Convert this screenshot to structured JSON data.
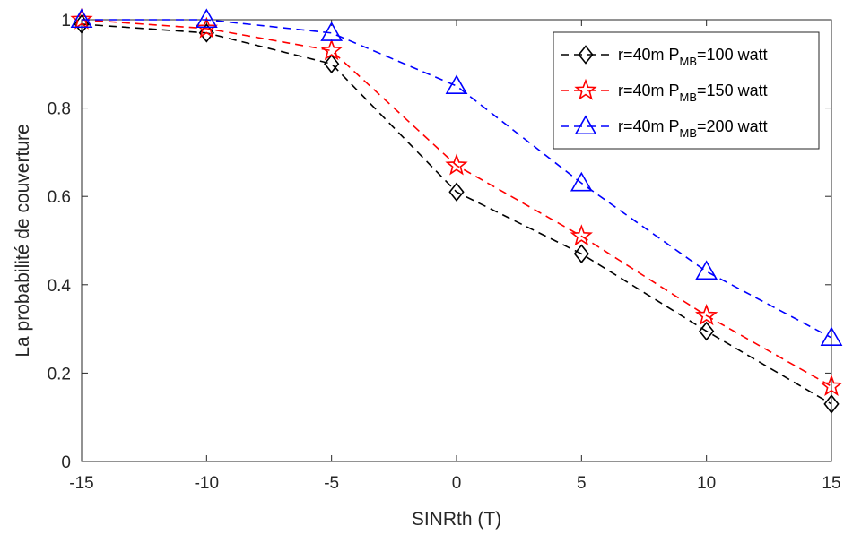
{
  "chart_data": {
    "type": "line",
    "xlabel": "SINRth (T)",
    "ylabel": "La probabilité de couverture",
    "xlim": [
      -15,
      15
    ],
    "ylim": [
      0,
      1
    ],
    "x_ticks": [
      "-15",
      "-10",
      "-5",
      "0",
      "5",
      "10",
      "15"
    ],
    "y_ticks": [
      "0",
      "0.2",
      "0.4",
      "0.6",
      "0.8",
      "1"
    ],
    "x": [
      -15,
      -10,
      -5,
      0,
      5,
      10,
      15
    ],
    "grid": false,
    "legend_position": "top-right",
    "series": [
      {
        "name": "r=40m P_MB=100 watt",
        "label_main": "r=40m P",
        "label_sub": "MB",
        "label_tail": "=100 watt",
        "marker": "diamond",
        "line_style": "dashed",
        "color": "#000000",
        "values": [
          0.99,
          0.97,
          0.9,
          0.61,
          0.47,
          0.295,
          0.13
        ]
      },
      {
        "name": "r=40m P_MB=150 watt",
        "label_main": "r=40m P",
        "label_sub": "MB",
        "label_tail": "=150 watt",
        "marker": "star",
        "line_style": "dashed",
        "color": "#ff0000",
        "values": [
          1.0,
          0.98,
          0.93,
          0.67,
          0.51,
          0.33,
          0.17
        ]
      },
      {
        "name": "r=40m P_MB=200 watt",
        "label_main": "r=40m P",
        "label_sub": "MB",
        "label_tail": "=200 watt",
        "marker": "triangle",
        "line_style": "dashed",
        "color": "#0000ff",
        "values": [
          1.0,
          1.0,
          0.97,
          0.85,
          0.63,
          0.43,
          0.28
        ]
      }
    ]
  }
}
